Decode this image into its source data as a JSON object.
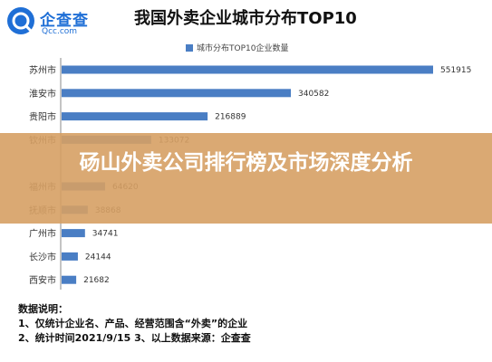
{
  "brand": {
    "name": "企查查",
    "sub": "Qcc.com"
  },
  "banner": {
    "text": "砀山外卖公司排行榜及市场深度分析"
  },
  "footer": {
    "line1": "数据说明：",
    "line2": "1、仅统计企业名、产品、经营范围含“外卖”的企业",
    "line3": "2、统计时间2021/9/15     3、以上数据来源：企查查"
  },
  "colors": {
    "bar": "#4a7ec4",
    "banner": "#d6a064"
  },
  "chart_data": {
    "type": "bar",
    "orientation": "horizontal",
    "title": "我国外卖企业城市分布TOP10",
    "legend": "城市分布TOP10企业数量",
    "categories": [
      "苏州市",
      "淮安市",
      "贵阳市",
      "钦州市",
      "",
      "福州市",
      "抚顺市",
      "广州市",
      "长沙市",
      "西安市"
    ],
    "values": [
      551915,
      340582,
      216889,
      133072,
      0,
      64620,
      38868,
      34741,
      24144,
      21682
    ],
    "labels": [
      "551915",
      "340582",
      "216889",
      "133072",
      "",
      "64620",
      "38868",
      "34741",
      "24144",
      "21682"
    ],
    "xlim": [
      0,
      551915
    ]
  }
}
